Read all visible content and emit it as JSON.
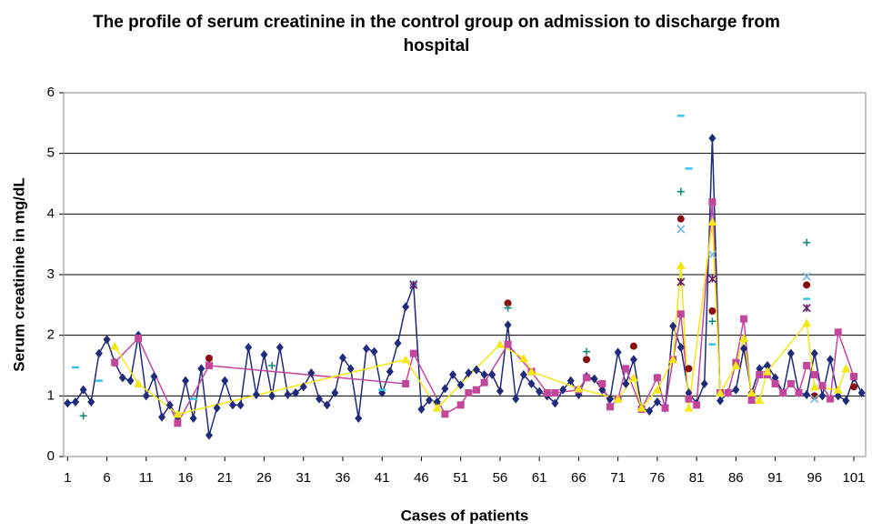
{
  "chart_data": {
    "type": "line",
    "title": "The profile of serum creatinine in the control group on admission to discharge from hospital",
    "x_label": "Cases of patients",
    "y_label": "Serum creatinine in mg/dL",
    "xlim": [
      0.5,
      102.5
    ],
    "xticks": [
      1,
      6,
      11,
      16,
      21,
      26,
      31,
      36,
      41,
      46,
      51,
      56,
      61,
      66,
      71,
      76,
      81,
      86,
      91,
      96,
      101
    ],
    "ylim": [
      0,
      6
    ],
    "yticks": [
      0,
      1,
      2,
      3,
      4,
      5,
      6
    ],
    "grid": true,
    "series": [
      {
        "color": "#1f2a7a",
        "marker": "diamond",
        "line": true,
        "x": [
          1,
          2,
          3,
          4,
          5,
          6,
          7,
          8,
          9,
          10,
          11,
          12,
          13,
          14,
          15,
          16,
          17,
          18,
          19,
          20,
          21,
          22,
          23,
          24,
          25,
          26,
          27,
          28,
          29,
          30,
          31,
          32,
          33,
          34,
          35,
          36,
          37,
          38,
          39,
          40,
          41,
          42,
          43,
          44,
          45,
          46,
          47,
          48,
          49,
          50,
          51,
          52,
          53,
          54,
          55,
          56,
          57,
          58,
          59,
          60,
          61,
          62,
          63,
          64,
          65,
          66,
          67,
          68,
          69,
          70,
          71,
          72,
          73,
          74,
          75,
          76,
          77,
          78,
          79,
          80,
          81,
          82,
          83,
          84,
          85,
          86,
          87,
          88,
          89,
          90,
          91,
          92,
          93,
          94,
          95,
          96,
          97,
          98,
          99,
          100,
          101,
          102
        ],
        "values": [
          0.88,
          0.9,
          1.1,
          0.9,
          1.7,
          1.93,
          1.55,
          1.3,
          1.25,
          2.0,
          1.0,
          1.32,
          0.65,
          0.85,
          0.65,
          1.25,
          0.63,
          1.45,
          0.35,
          0.8,
          1.25,
          0.85,
          0.85,
          1.8,
          1.02,
          1.68,
          1.0,
          1.8,
          1.02,
          1.05,
          1.15,
          1.38,
          0.95,
          0.85,
          1.05,
          1.63,
          1.45,
          0.63,
          1.78,
          1.73,
          1.05,
          1.4,
          1.87,
          2.47,
          2.83,
          0.78,
          0.93,
          0.9,
          1.12,
          1.35,
          1.18,
          1.38,
          1.43,
          1.35,
          1.35,
          1.08,
          2.17,
          0.95,
          1.35,
          1.2,
          1.07,
          1.0,
          0.88,
          1.1,
          1.25,
          1.02,
          1.32,
          1.28,
          1.1,
          0.95,
          1.72,
          1.2,
          1.6,
          0.8,
          0.75,
          0.9,
          0.8,
          2.15,
          1.8,
          1.05,
          0.88,
          1.2,
          5.25,
          0.92,
          1.05,
          1.1,
          1.78,
          1.05,
          1.45,
          1.5,
          1.3,
          1.05,
          1.7,
          1.05,
          1.02,
          1.7,
          1.0,
          1.6,
          1.0,
          0.92,
          1.3,
          1.05
        ]
      },
      {
        "color": "#c2469c",
        "marker": "square",
        "line": true,
        "x": [
          7,
          10,
          15,
          19,
          44,
          45,
          49,
          51,
          52,
          53,
          54,
          57,
          60,
          62,
          63,
          66,
          67,
          69,
          70,
          71,
          72,
          74,
          76,
          77,
          78,
          79,
          80,
          81,
          83,
          84,
          85,
          86,
          87,
          88,
          89,
          90,
          91,
          92,
          93,
          94,
          95,
          96,
          97,
          98,
          99,
          101
        ],
        "values": [
          1.55,
          1.95,
          0.55,
          1.5,
          1.2,
          1.7,
          0.7,
          0.85,
          1.05,
          1.1,
          1.22,
          1.85,
          1.4,
          1.05,
          1.05,
          1.1,
          1.3,
          1.2,
          0.82,
          0.95,
          1.45,
          0.78,
          1.3,
          0.8,
          1.6,
          2.35,
          0.95,
          0.85,
          4.2,
          1.05,
          1.05,
          1.55,
          2.27,
          0.93,
          1.35,
          1.35,
          1.2,
          1.05,
          1.2,
          1.05,
          1.5,
          1.35,
          1.17,
          0.95,
          2.05,
          1.32
        ]
      },
      {
        "color": "#f5e615",
        "marker": "triangle",
        "line": true,
        "x": [
          7,
          10,
          15,
          44,
          48,
          56,
          59,
          60,
          66,
          71,
          73,
          74,
          76,
          78,
          79,
          80,
          83,
          84,
          86,
          87,
          88,
          89,
          90,
          95,
          96,
          99,
          100
        ],
        "values": [
          1.82,
          1.2,
          0.7,
          1.6,
          0.8,
          1.85,
          1.62,
          1.4,
          1.12,
          0.95,
          1.3,
          0.8,
          1.1,
          1.6,
          3.15,
          0.8,
          3.87,
          1.05,
          1.5,
          1.95,
          1.05,
          0.93,
          1.4,
          2.2,
          1.15,
          1.1,
          1.45
        ]
      },
      {
        "color": "#8b0e0e",
        "marker": "circle",
        "line": false,
        "x": [
          19,
          57,
          67,
          73,
          79,
          80,
          83,
          95,
          96,
          101
        ],
        "values": [
          1.62,
          2.53,
          1.6,
          1.82,
          3.92,
          1.45,
          2.4,
          2.83,
          1.0,
          1.15
        ]
      },
      {
        "color": "#138a7a",
        "marker": "plus",
        "line": false,
        "x": [
          3,
          27,
          57,
          67,
          79,
          83,
          95
        ],
        "values": [
          0.67,
          1.5,
          2.45,
          1.73,
          4.37,
          2.23,
          3.53
        ]
      },
      {
        "color": "#38c5e8",
        "marker": "dash",
        "line": false,
        "x": [
          2,
          5,
          17,
          41,
          79,
          80,
          83,
          95
        ],
        "values": [
          1.47,
          1.25,
          0.95,
          1.1,
          5.62,
          4.75,
          1.85,
          2.6
        ]
      },
      {
        "color": "#6fb7e6",
        "marker": "x",
        "line": false,
        "x": [
          45,
          79,
          83,
          95,
          96
        ],
        "values": [
          2.85,
          3.75,
          3.33,
          2.97,
          0.95
        ]
      },
      {
        "color": "#6a1a6e",
        "marker": "asterisk",
        "line": false,
        "x": [
          45,
          79,
          83,
          95
        ],
        "values": [
          2.83,
          2.88,
          2.93,
          2.45
        ]
      }
    ]
  }
}
